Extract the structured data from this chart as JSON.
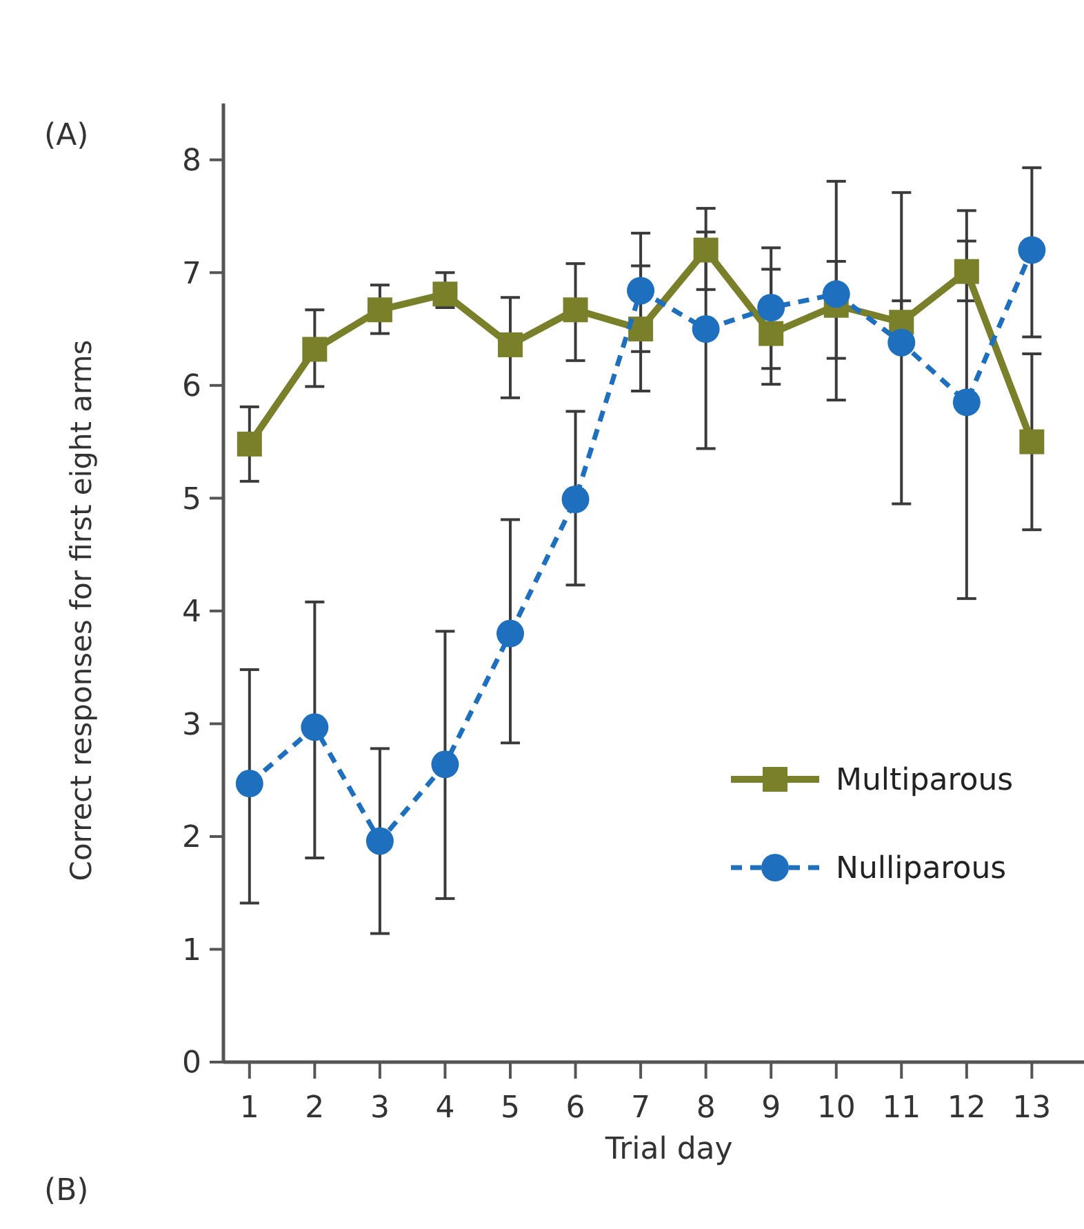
{
  "chart_data": {
    "type": "line",
    "xlabel": "Trial day",
    "ylabel": "Correct responses for first eight arms",
    "annotations": [
      "(A)",
      "(B)"
    ],
    "x": [
      1,
      2,
      3,
      4,
      5,
      6,
      7,
      8,
      9,
      10,
      11,
      12,
      13
    ],
    "xlim": [
      0.6,
      13.8
    ],
    "xticks": [
      1,
      2,
      3,
      4,
      5,
      6,
      7,
      8,
      9,
      10,
      11,
      12,
      13
    ],
    "ylim": [
      0,
      8.5
    ],
    "yticks": [
      0,
      1,
      2,
      3,
      4,
      5,
      6,
      7,
      8
    ],
    "grid": false,
    "legend": "right",
    "series": [
      {
        "name": "Multiparous",
        "color": "#7a7f2a",
        "marker": "square",
        "line_style": "solid",
        "values": [
          5.48,
          6.32,
          6.67,
          6.81,
          6.36,
          6.67,
          6.5,
          7.2,
          6.46,
          6.71,
          6.56,
          7.01,
          5.5
        ],
        "errors": [
          [
            5.15,
            5.81
          ],
          [
            5.99,
            6.67
          ],
          [
            6.46,
            6.89
          ],
          [
            6.69,
            7.0
          ],
          [
            5.89,
            6.78
          ],
          [
            6.22,
            7.08
          ],
          [
            5.95,
            7.06
          ],
          [
            6.85,
            7.57
          ],
          [
            6.01,
            7.03
          ],
          [
            6.24,
            7.1
          ],
          [
            6.56,
            6.75
          ],
          [
            6.75,
            7.28
          ],
          [
            4.72,
            6.28
          ]
        ]
      },
      {
        "name": "Nulliparous",
        "color": "#1f6fbf",
        "marker": "circle",
        "line_style": "dashed",
        "values": [
          2.47,
          2.97,
          1.96,
          2.64,
          3.8,
          4.99,
          6.84,
          6.5,
          6.69,
          6.81,
          6.38,
          5.85,
          7.2
        ],
        "errors": [
          [
            1.41,
            3.48
          ],
          [
            1.81,
            4.08
          ],
          [
            1.14,
            2.78
          ],
          [
            1.45,
            3.82
          ],
          [
            2.83,
            4.81
          ],
          [
            4.23,
            5.77
          ],
          [
            6.3,
            7.35
          ],
          [
            5.44,
            7.36
          ],
          [
            6.15,
            7.22
          ],
          [
            5.87,
            7.81
          ],
          [
            4.95,
            7.71
          ],
          [
            4.11,
            7.55
          ],
          [
            6.43,
            7.93
          ]
        ]
      }
    ]
  }
}
